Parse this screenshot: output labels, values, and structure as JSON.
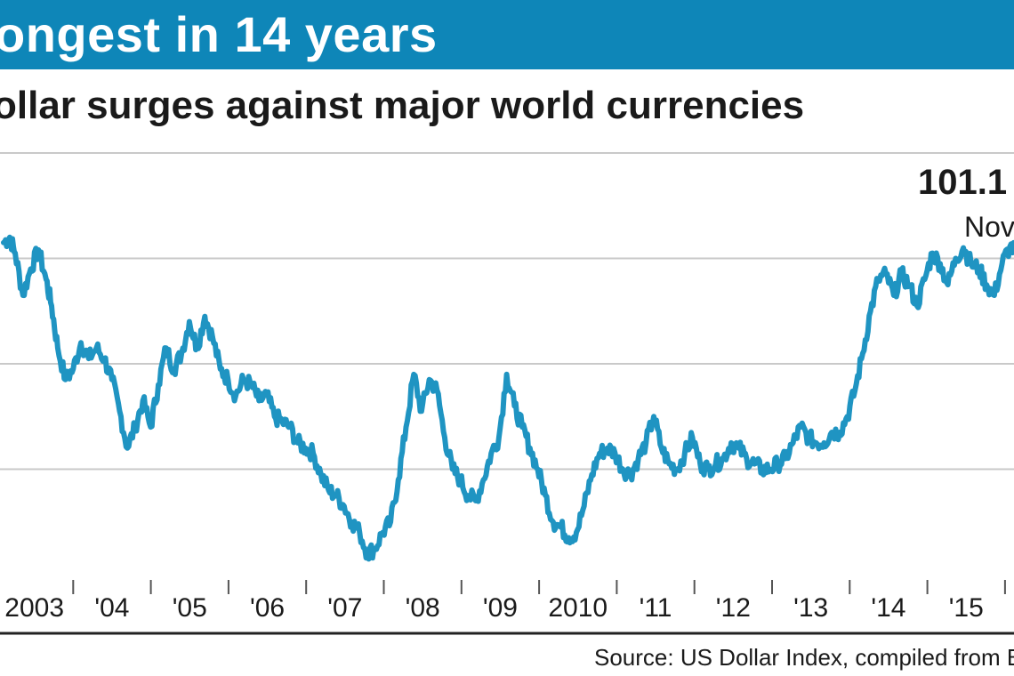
{
  "header": {
    "title": "ongest in 14 years",
    "subtitle": "ollar surges against major world currencies"
  },
  "source": "Source: US Dollar Index, compiled from Bl",
  "colors": {
    "accent": "#0e86b8",
    "line": "#1f94c2",
    "grid": "#c9c9c9",
    "text": "#1a1a1a"
  },
  "chart_data": {
    "type": "line",
    "title": "ongest in 14 years",
    "subtitle": "ollar surges against major world currencies",
    "xlabel": "",
    "ylabel": "",
    "x_tick_labels": [
      "2003",
      "'04",
      "'05",
      "'06",
      "'07",
      "'08",
      "'09",
      "2010",
      "'11",
      "'12",
      "'13",
      "'14",
      "'15"
    ],
    "xlim": [
      2003,
      2016.1
    ],
    "ylim": [
      70,
      110
    ],
    "gridlines_y": [
      80,
      90,
      100,
      110
    ],
    "annotation": {
      "value_text": "101.1",
      "date_text": "Nov",
      "x": 2016.0,
      "y": 101.1
    },
    "series": [
      {
        "name": "US Dollar Index",
        "x": [
          2003.0,
          2003.08,
          2003.15,
          2003.25,
          2003.35,
          2003.45,
          2003.55,
          2003.62,
          2003.7,
          2003.8,
          2003.9,
          2004.0,
          2004.1,
          2004.2,
          2004.3,
          2004.4,
          2004.5,
          2004.6,
          2004.7,
          2004.8,
          2004.9,
          2005.0,
          2005.1,
          2005.2,
          2005.3,
          2005.4,
          2005.5,
          2005.6,
          2005.7,
          2005.8,
          2005.9,
          2006.0,
          2006.1,
          2006.2,
          2006.3,
          2006.4,
          2006.5,
          2006.6,
          2006.7,
          2006.8,
          2006.9,
          2007.0,
          2007.1,
          2007.2,
          2007.3,
          2007.4,
          2007.5,
          2007.6,
          2007.7,
          2007.8,
          2007.9,
          2008.0,
          2008.1,
          2008.2,
          2008.3,
          2008.4,
          2008.5,
          2008.6,
          2008.7,
          2008.8,
          2008.9,
          2009.0,
          2009.1,
          2009.2,
          2009.3,
          2009.4,
          2009.5,
          2009.6,
          2009.7,
          2009.8,
          2009.9,
          2010.0,
          2010.1,
          2010.2,
          2010.3,
          2010.4,
          2010.5,
          2010.6,
          2010.7,
          2010.8,
          2010.9,
          2011.0,
          2011.1,
          2011.2,
          2011.3,
          2011.4,
          2011.5,
          2011.6,
          2011.7,
          2011.8,
          2011.9,
          2012.0,
          2012.1,
          2012.2,
          2012.3,
          2012.4,
          2012.5,
          2012.6,
          2012.7,
          2012.8,
          2012.9,
          2013.0,
          2013.1,
          2013.2,
          2013.3,
          2013.4,
          2013.5,
          2013.6,
          2013.7,
          2013.8,
          2013.9,
          2014.0,
          2014.1,
          2014.2,
          2014.3,
          2014.4,
          2014.5,
          2014.6,
          2014.7,
          2014.8,
          2014.9,
          2015.0,
          2015.1,
          2015.2,
          2015.3,
          2015.4,
          2015.5,
          2015.6,
          2015.7,
          2015.8,
          2015.9,
          2016.0,
          2016.1
        ],
        "y": [
          101.5,
          102.0,
          100.5,
          96.5,
          99.0,
          100.8,
          98.0,
          95.5,
          91.5,
          88.5,
          89.5,
          92.0,
          90.5,
          91.5,
          90.5,
          88.5,
          85.5,
          82.0,
          84.0,
          86.5,
          84.0,
          88.0,
          91.5,
          89.5,
          91.0,
          94.0,
          91.5,
          94.5,
          92.5,
          89.5,
          88.5,
          87.0,
          88.5,
          88.0,
          86.5,
          87.0,
          85.0,
          84.5,
          84.0,
          82.5,
          82.0,
          81.5,
          79.5,
          78.0,
          77.5,
          76.5,
          75.0,
          74.0,
          72.0,
          72.5,
          74.0,
          75.0,
          79.0,
          84.0,
          89.0,
          85.5,
          88.5,
          87.5,
          83.0,
          80.0,
          79.0,
          77.5,
          77.0,
          79.0,
          81.5,
          83.0,
          89.0,
          86.0,
          84.0,
          82.0,
          80.0,
          77.5,
          75.0,
          74.5,
          73.5,
          74.0,
          76.5,
          79.5,
          81.5,
          82.0,
          81.5,
          80.0,
          79.5,
          81.0,
          82.5,
          85.0,
          82.0,
          80.5,
          80.0,
          81.5,
          83.0,
          80.5,
          80.0,
          80.5,
          81.0,
          82.5,
          82.0,
          81.0,
          80.5,
          80.0,
          80.0,
          80.5,
          81.0,
          82.5,
          84.0,
          83.0,
          82.5,
          82.5,
          83.5,
          83.5,
          85.0,
          87.5,
          91.0,
          95.0,
          98.0,
          98.5,
          96.5,
          98.5,
          97.5,
          95.5,
          98.0,
          100.5,
          99.5,
          97.5,
          100.0,
          101.0,
          99.5,
          99.0,
          97.5,
          96.5,
          99.5,
          101.1,
          100.5
        ]
      }
    ]
  }
}
